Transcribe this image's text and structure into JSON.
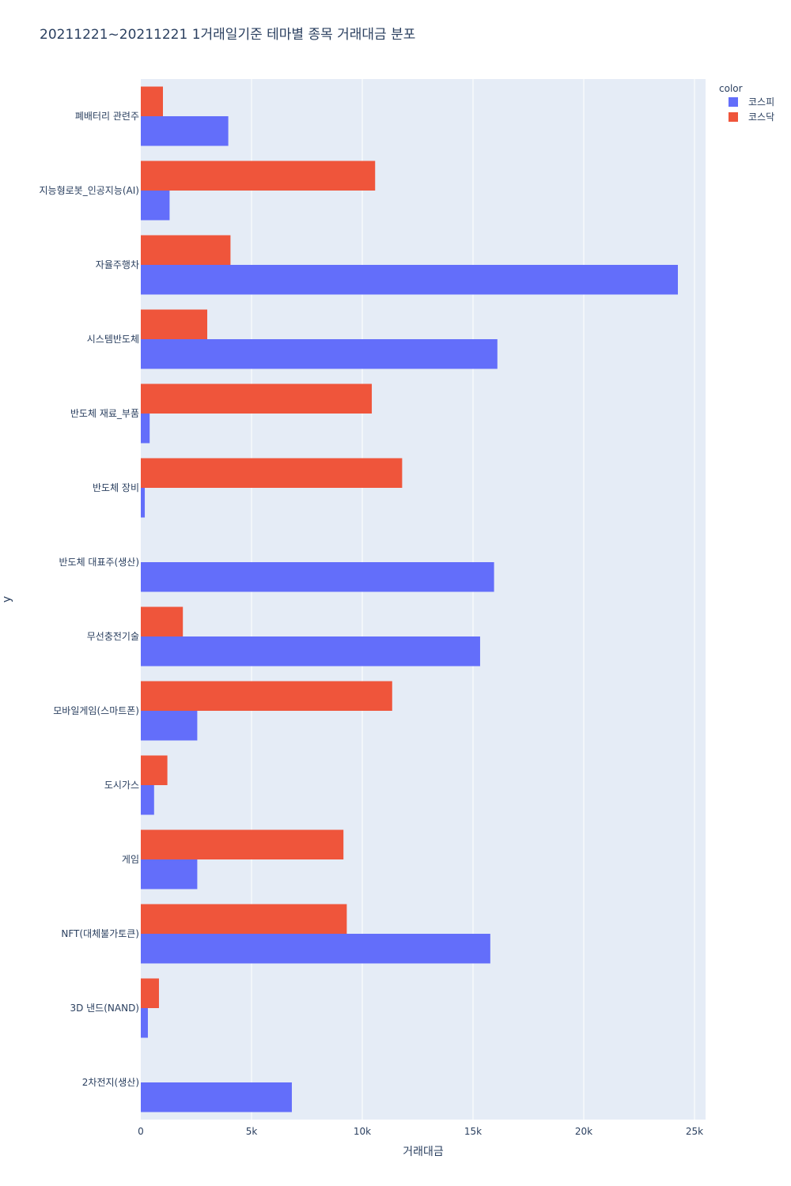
{
  "chart_data": {
    "type": "bar",
    "orientation": "horizontal",
    "barmode": "group",
    "title": "20211221~20211221 1거래일기준 테마별 종목 거래대금 분포",
    "xlabel": "거래대금",
    "ylabel": "y",
    "xlim": [
      0,
      25500
    ],
    "xticks": [
      0,
      5000,
      10000,
      15000,
      20000,
      25000
    ],
    "xtick_labels": [
      "0",
      "5k",
      "10k",
      "15k",
      "20k",
      "25k"
    ],
    "grid": true,
    "legend": {
      "title": "color",
      "placement": "top-right"
    },
    "categories": [
      "폐배터리 관련주",
      "지능형로봇_인공지능(AI)",
      "자율주행차",
      "시스템반도체",
      "반도체 재료_부품",
      "반도체 장비",
      "반도체 대표주(생산)",
      "무선충전기술",
      "모바일게임(스마트폰)",
      "도시가스",
      "게임",
      "NFT(대체불가토큰)",
      "3D 낸드(NAND)",
      "2차전지(생산)"
    ],
    "series": [
      {
        "name": "코스피",
        "color": "#636efa",
        "values": [
          3950,
          1300,
          24250,
          16100,
          400,
          180,
          15950,
          15320,
          2550,
          600,
          2550,
          15780,
          320,
          6820
        ]
      },
      {
        "name": "코스닥",
        "color": "#ef553b",
        "values": [
          1000,
          10580,
          4050,
          3000,
          10430,
          11800,
          0,
          1900,
          11350,
          1200,
          9150,
          9300,
          820,
          0
        ]
      }
    ],
    "plot_bg": "#e5ecf6",
    "grid_color": "#ffffff"
  }
}
